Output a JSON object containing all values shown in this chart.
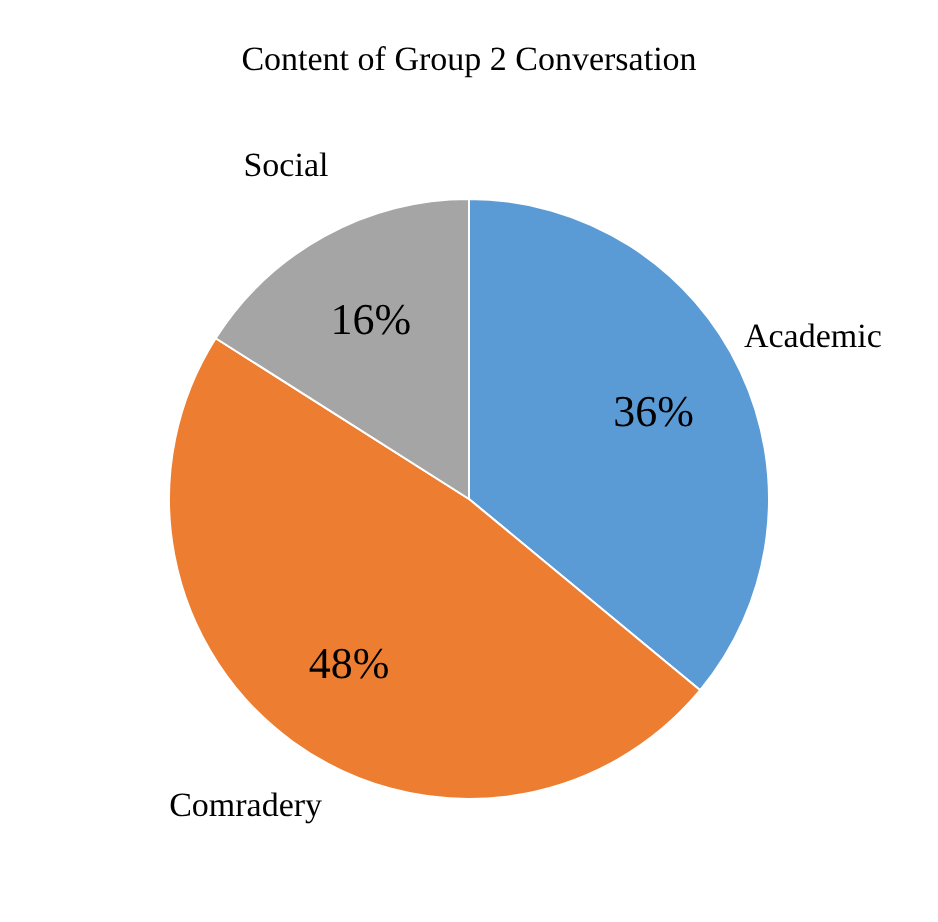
{
  "chart_data": {
    "type": "pie",
    "title": "Content of Group 2 Conversation",
    "categories": [
      "Academic",
      "Comradery",
      "Social"
    ],
    "values": [
      36,
      48,
      16
    ],
    "value_labels": [
      "36%",
      "48%",
      "16%"
    ],
    "colors": [
      "#5b9bd5",
      "#ed7d31",
      "#a5a5a5"
    ],
    "legend": false
  }
}
